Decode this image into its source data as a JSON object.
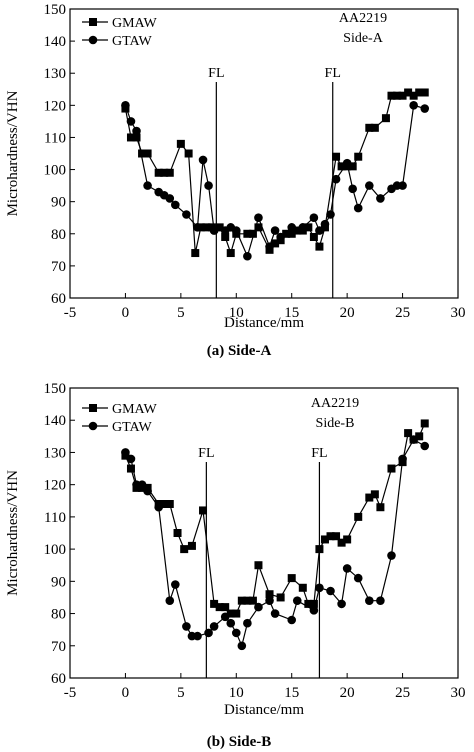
{
  "chart_data": [
    {
      "type": "line",
      "xlabel": "Distance/mm",
      "ylabel": "Microhardness/VHN",
      "xlim": [
        -5,
        30
      ],
      "ylim": [
        60,
        150
      ],
      "x_ticks": [
        "-5",
        "0",
        "5",
        "10",
        "15",
        "20",
        "25",
        "30"
      ],
      "y_ticks": [
        "60",
        "70",
        "80",
        "90",
        "100",
        "110",
        "120",
        "130",
        "140",
        "150"
      ],
      "caption": "(a) Side-A",
      "annotation": [
        "AA2219",
        "Side-A"
      ],
      "fusion_lines": [
        {
          "label": "FL",
          "x": 8.2
        },
        {
          "label": "FL",
          "x": 18.7
        }
      ],
      "legend_position": "top-left",
      "series": [
        {
          "name": "GMAW",
          "marker": "square",
          "points": [
            [
              0,
              119
            ],
            [
              0.5,
              110
            ],
            [
              1,
              110
            ],
            [
              1.5,
              105
            ],
            [
              2,
              105
            ],
            [
              3,
              99
            ],
            [
              3.5,
              99
            ],
            [
              4,
              99
            ],
            [
              5,
              108
            ],
            [
              5.7,
              105
            ],
            [
              6.3,
              74
            ],
            [
              6.8,
              82
            ],
            [
              7.3,
              82
            ],
            [
              7.8,
              82
            ],
            [
              8.5,
              82
            ],
            [
              9,
              79
            ],
            [
              9.5,
              74
            ],
            [
              10,
              80
            ],
            [
              11,
              80
            ],
            [
              11.5,
              80
            ],
            [
              12,
              82
            ],
            [
              13,
              75
            ],
            [
              13.5,
              77
            ],
            [
              14,
              78
            ],
            [
              14.5,
              80
            ],
            [
              15,
              80
            ],
            [
              15.5,
              81
            ],
            [
              16,
              81
            ],
            [
              16.5,
              82
            ],
            [
              17,
              79
            ],
            [
              17.5,
              76
            ],
            [
              18,
              82
            ],
            [
              19,
              104
            ],
            [
              19.5,
              101
            ],
            [
              20,
              101
            ],
            [
              20.5,
              101
            ],
            [
              21,
              104
            ],
            [
              22,
              113
            ],
            [
              22.5,
              113
            ],
            [
              23.5,
              116
            ],
            [
              24,
              123
            ],
            [
              24.5,
              123
            ],
            [
              25,
              123
            ],
            [
              25.5,
              124
            ],
            [
              26,
              123
            ],
            [
              26.5,
              124
            ],
            [
              27,
              124
            ]
          ]
        },
        {
          "name": "GTAW",
          "marker": "circle",
          "points": [
            [
              0,
              120
            ],
            [
              0.5,
              115
            ],
            [
              1,
              112
            ],
            [
              2,
              95
            ],
            [
              3,
              93
            ],
            [
              3.5,
              92
            ],
            [
              4,
              91
            ],
            [
              4.5,
              89
            ],
            [
              5.5,
              86
            ],
            [
              6.5,
              82
            ],
            [
              7,
              103
            ],
            [
              7.5,
              95
            ],
            [
              8,
              81
            ],
            [
              9,
              81
            ],
            [
              9.5,
              82
            ],
            [
              10,
              81
            ],
            [
              11,
              73
            ],
            [
              12,
              85
            ],
            [
              13,
              76
            ],
            [
              13.5,
              81
            ],
            [
              14,
              79
            ],
            [
              15,
              82
            ],
            [
              16,
              82
            ],
            [
              17,
              85
            ],
            [
              17.5,
              81
            ],
            [
              18,
              83
            ],
            [
              18.5,
              86
            ],
            [
              19,
              97
            ],
            [
              20,
              102
            ],
            [
              20.5,
              94
            ],
            [
              21,
              88
            ],
            [
              22,
              95
            ],
            [
              23,
              91
            ],
            [
              24,
              94
            ],
            [
              24.5,
              95
            ],
            [
              25,
              95
            ],
            [
              26,
              120
            ],
            [
              27,
              119
            ]
          ]
        }
      ]
    },
    {
      "type": "line",
      "xlabel": "Distance/mm",
      "ylabel": "Microhardness/VHN",
      "xlim": [
        -5,
        30
      ],
      "ylim": [
        60,
        150
      ],
      "x_ticks": [
        "-5",
        "0",
        "5",
        "10",
        "15",
        "20",
        "25",
        "30"
      ],
      "y_ticks": [
        "60",
        "70",
        "80",
        "90",
        "100",
        "110",
        "120",
        "130",
        "140",
        "150"
      ],
      "caption": "(b) Side-B",
      "annotation": [
        "AA2219",
        "Side-B"
      ],
      "fusion_lines": [
        {
          "label": "FL",
          "x": 7.3
        },
        {
          "label": "FL",
          "x": 17.5
        }
      ],
      "legend_position": "top-left",
      "series": [
        {
          "name": "GMAW",
          "marker": "square",
          "points": [
            [
              0,
              129
            ],
            [
              0.5,
              125
            ],
            [
              1,
              119
            ],
            [
              1.5,
              119
            ],
            [
              2,
              119
            ],
            [
              3,
              114
            ],
            [
              3.5,
              114
            ],
            [
              4,
              114
            ],
            [
              4.7,
              105
            ],
            [
              5.3,
              100
            ],
            [
              6,
              101
            ],
            [
              7,
              112
            ],
            [
              8,
              83
            ],
            [
              8.5,
              82
            ],
            [
              9,
              82
            ],
            [
              9.5,
              80
            ],
            [
              10,
              80
            ],
            [
              10.5,
              84
            ],
            [
              11,
              84
            ],
            [
              11.5,
              84
            ],
            [
              12,
              95
            ],
            [
              13,
              86
            ],
            [
              14,
              85
            ],
            [
              15,
              91
            ],
            [
              16,
              88
            ],
            [
              16.5,
              83
            ],
            [
              17,
              83
            ],
            [
              17.5,
              100
            ],
            [
              18,
              103
            ],
            [
              18.5,
              104
            ],
            [
              19,
              104
            ],
            [
              19.5,
              102
            ],
            [
              20,
              103
            ],
            [
              21,
              110
            ],
            [
              22,
              116
            ],
            [
              22.5,
              117
            ],
            [
              23,
              113
            ],
            [
              24,
              125
            ],
            [
              25,
              127
            ],
            [
              25.5,
              136
            ],
            [
              26,
              134
            ],
            [
              26.5,
              135
            ],
            [
              27,
              139
            ]
          ]
        },
        {
          "name": "GTAW",
          "marker": "circle",
          "points": [
            [
              0,
              130
            ],
            [
              0.5,
              128
            ],
            [
              1,
              120
            ],
            [
              1.5,
              120
            ],
            [
              2,
              118
            ],
            [
              3,
              113
            ],
            [
              4,
              84
            ],
            [
              4.5,
              89
            ],
            [
              5.5,
              76
            ],
            [
              6,
              73
            ],
            [
              6.5,
              73
            ],
            [
              7.5,
              74
            ],
            [
              8,
              76
            ],
            [
              9,
              79
            ],
            [
              9.5,
              77
            ],
            [
              10,
              74
            ],
            [
              10.5,
              70
            ],
            [
              11,
              77
            ],
            [
              12,
              82
            ],
            [
              13,
              84
            ],
            [
              13.5,
              80
            ],
            [
              15,
              78
            ],
            [
              15.5,
              84
            ],
            [
              17,
              81
            ],
            [
              17.5,
              88
            ],
            [
              18.5,
              87
            ],
            [
              19.5,
              83
            ],
            [
              20,
              94
            ],
            [
              21,
              91
            ],
            [
              22,
              84
            ],
            [
              23,
              84
            ],
            [
              24,
              98
            ],
            [
              25,
              128
            ],
            [
              26,
              134
            ],
            [
              27,
              132
            ]
          ]
        }
      ]
    }
  ]
}
